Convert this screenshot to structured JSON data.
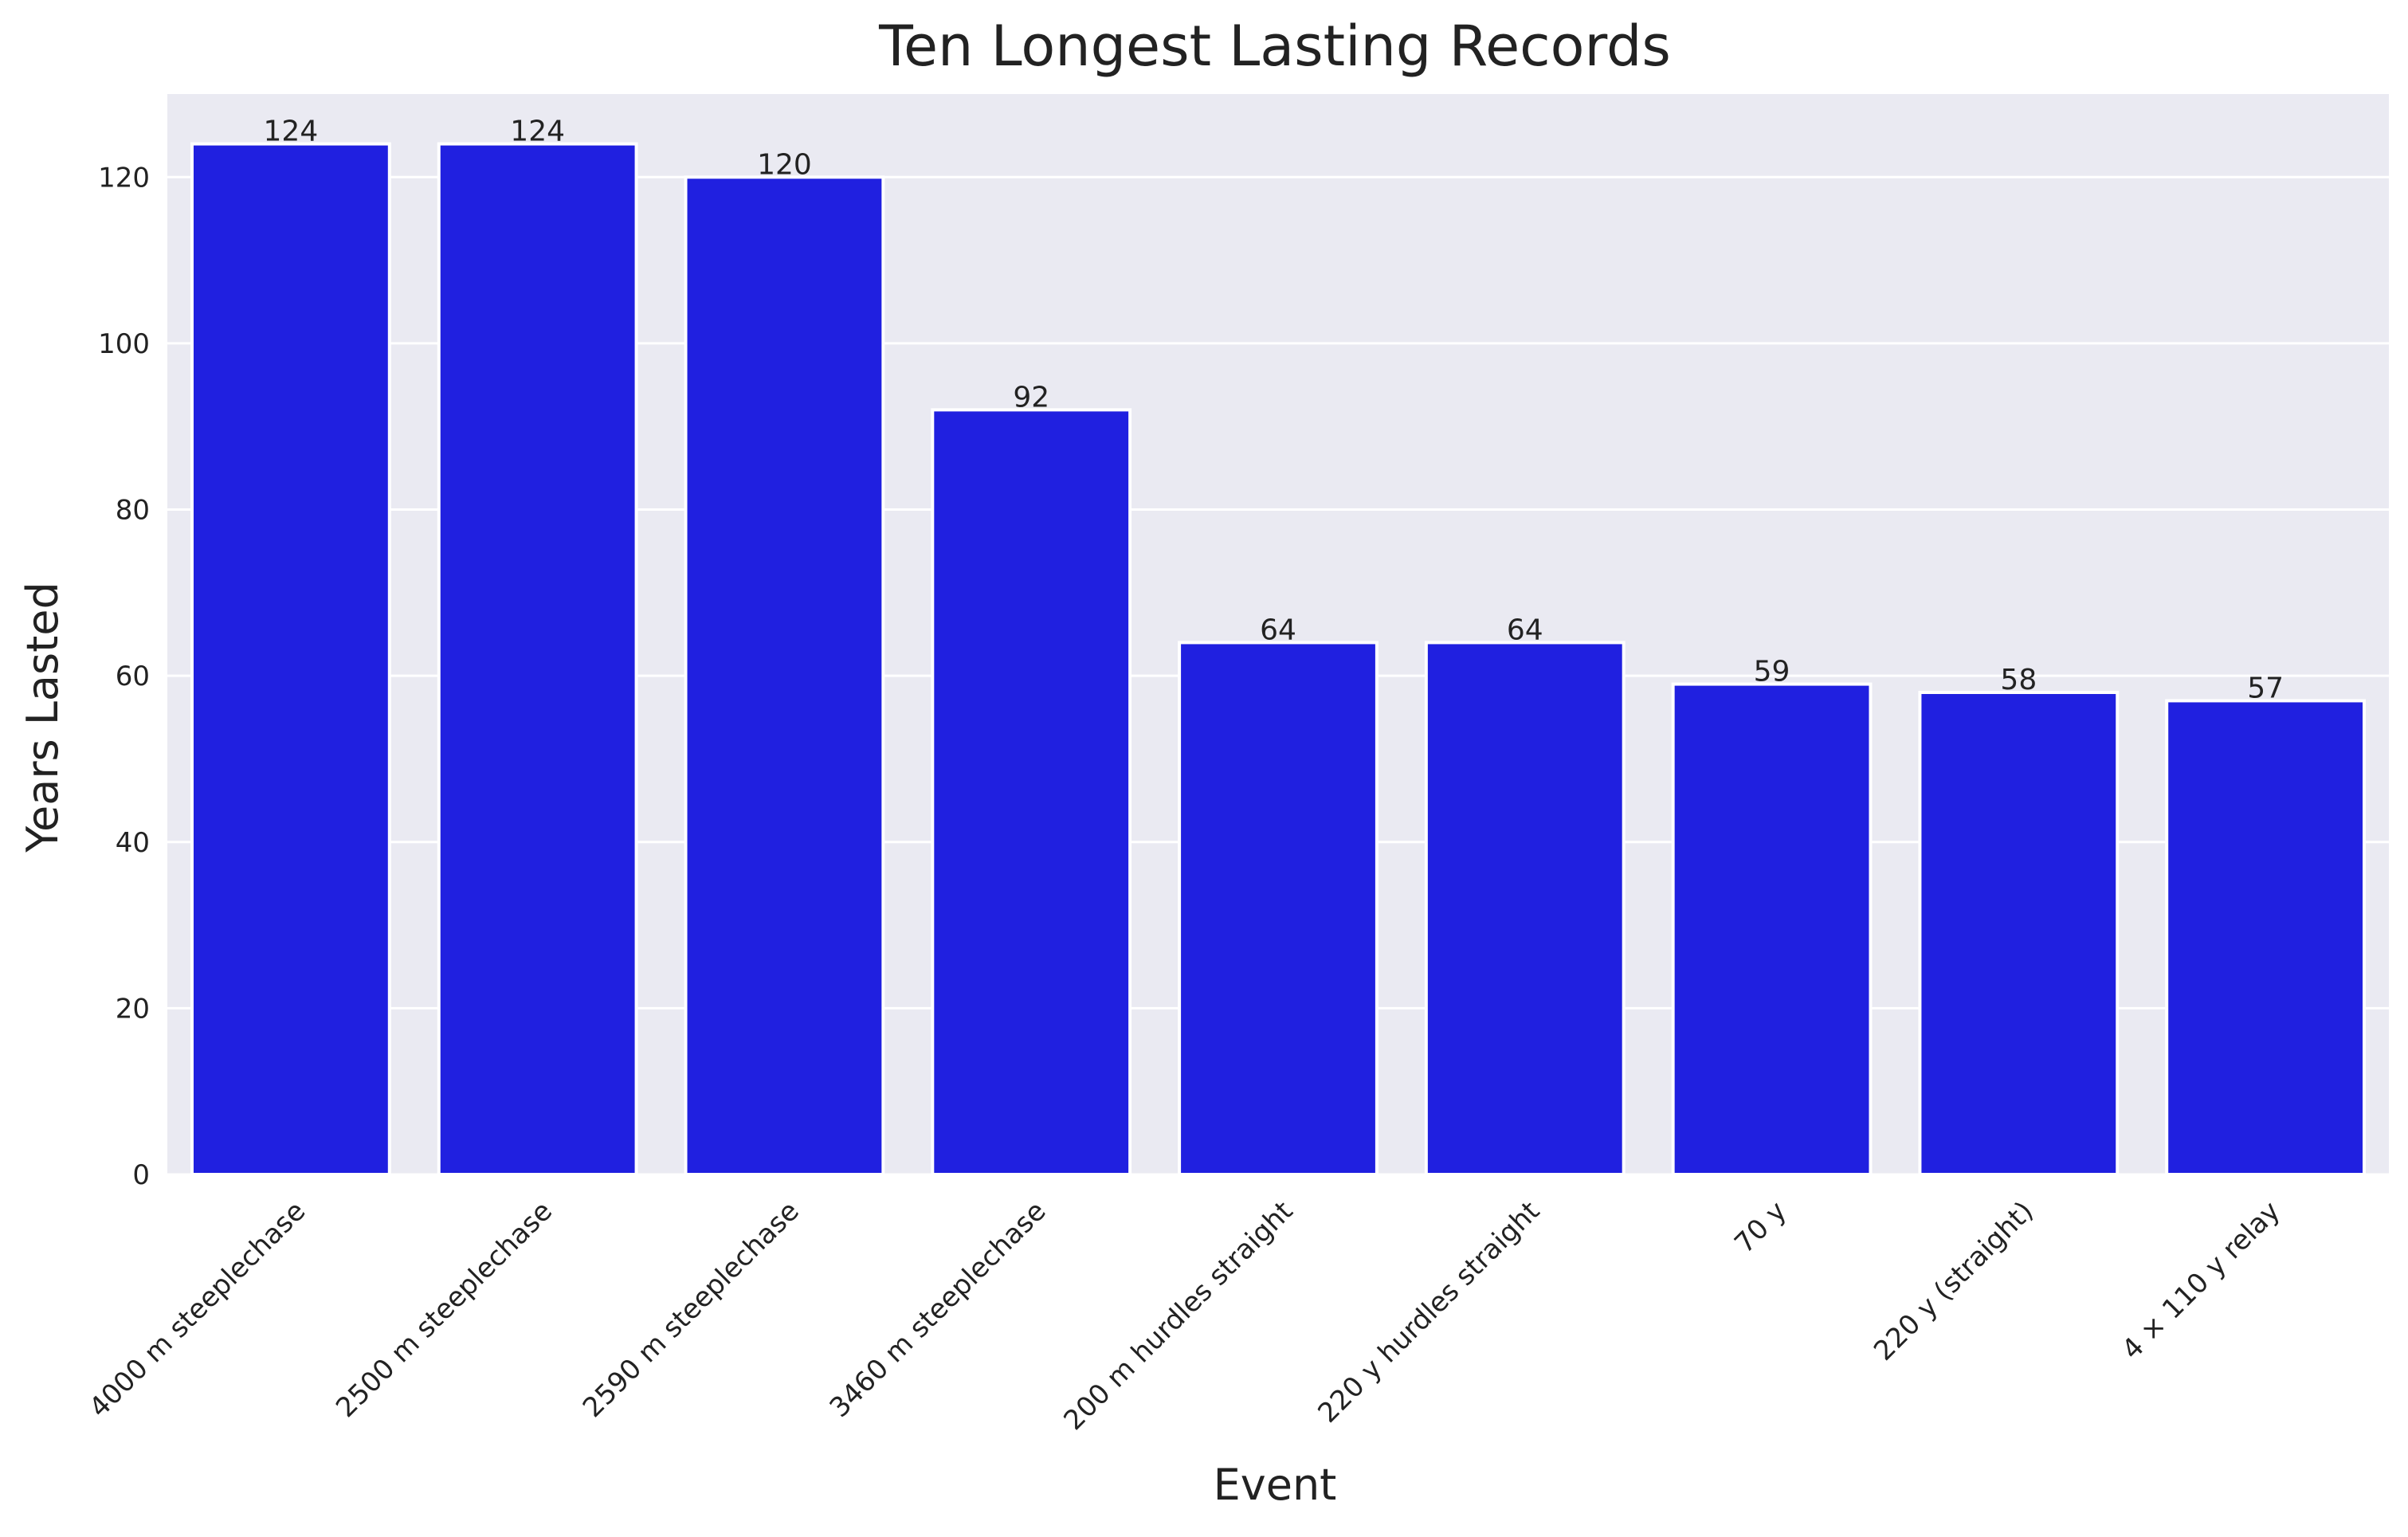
{
  "chart_data": {
    "type": "bar",
    "title": "Ten Longest Lasting Records",
    "xlabel": "Event",
    "ylabel": "Years Lasted",
    "categories": [
      "4000 m steeplechase",
      "2500 m steeplechase",
      "2590 m steeplechase",
      "3460 m steeplechase",
      "200 m hurdles straight",
      "220 y hurdles straight",
      "70 y",
      "220 y (straight)",
      "4 × 110 y relay"
    ],
    "values": [
      124,
      124,
      120,
      92,
      64,
      64,
      59,
      58,
      57
    ],
    "ylim": [
      0,
      130
    ],
    "yticks": [
      0,
      20,
      40,
      60,
      80,
      100,
      120
    ],
    "grid": true,
    "colors": {
      "bar": "#2020e0",
      "plot_background": "#eaeaf2",
      "grid": "#ffffff",
      "text": "#222222"
    }
  }
}
